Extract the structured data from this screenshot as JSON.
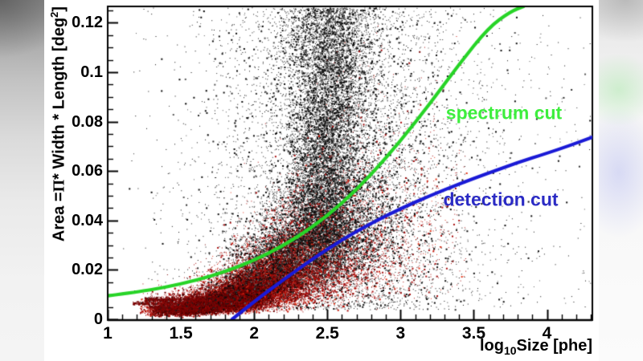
{
  "chart_data": {
    "type": "scatter",
    "title": "",
    "xlabel": {
      "prefix": "log",
      "sub": "10",
      "rest": "Size [phe]"
    },
    "ylabel": {
      "t1": "Area =",
      "pi": "Π",
      "t2": "* Width * Length [deg",
      "sup": "2",
      "t3": "]"
    },
    "x_axis": {
      "min": 1.0,
      "max": 4.31,
      "major_ticks": [
        1,
        1.5,
        2,
        2.5,
        3,
        3.5,
        4
      ],
      "labels": [
        "1",
        "1.5",
        "2",
        "2.5",
        "3",
        "3.5",
        "4"
      ],
      "minor_step": 0.1
    },
    "y_axis": {
      "min": 0.0,
      "max": 0.1266,
      "major_ticks": [
        0,
        0.02,
        0.04,
        0.06,
        0.08,
        0.1,
        0.12
      ],
      "labels": [
        "0",
        "0.02",
        "0.04",
        "0.06",
        "0.08",
        "0.1",
        "0.12"
      ],
      "minor_step": 0.005
    },
    "grid": false,
    "curves": [
      {
        "name": "spectrum cut",
        "color": "#27d427",
        "label_color": "#3dee3d",
        "points": [
          [
            1.0,
            0.0095
          ],
          [
            1.2,
            0.011
          ],
          [
            1.4,
            0.013
          ],
          [
            1.6,
            0.0157
          ],
          [
            1.8,
            0.0192
          ],
          [
            2.0,
            0.0238
          ],
          [
            2.2,
            0.0298
          ],
          [
            2.4,
            0.0373
          ],
          [
            2.6,
            0.0468
          ],
          [
            2.8,
            0.0585
          ],
          [
            3.0,
            0.0722
          ],
          [
            3.2,
            0.0872
          ],
          [
            3.4,
            0.1032
          ],
          [
            3.6,
            0.118
          ],
          [
            3.75,
            0.1245
          ],
          [
            3.84,
            0.1266
          ]
        ]
      },
      {
        "name": "detection cut",
        "color": "#1a1ad6",
        "label_color": "#2b2bc4",
        "points": [
          [
            1.85,
            0.0
          ],
          [
            2.0,
            0.0072
          ],
          [
            2.2,
            0.016
          ],
          [
            2.4,
            0.0245
          ],
          [
            2.6,
            0.0322
          ],
          [
            2.8,
            0.0389
          ],
          [
            3.0,
            0.0448
          ],
          [
            3.2,
            0.05
          ],
          [
            3.4,
            0.0548
          ],
          [
            3.6,
            0.0592
          ],
          [
            3.8,
            0.0634
          ],
          [
            4.0,
            0.0672
          ],
          [
            4.15,
            0.0702
          ],
          [
            4.31,
            0.0737
          ]
        ]
      }
    ],
    "scatter_series": [
      {
        "name": "background-events-black",
        "palette": [
          "#0c0c0c",
          "#2e2e2e",
          "#575757"
        ],
        "clusters": [
          {
            "kind": "halo",
            "n": 6500,
            "cx": 2.55,
            "sx": 0.5,
            "ymin": 0.004,
            "ymax": 0.138,
            "pow": 1.15
          },
          {
            "kind": "column",
            "n": 9500,
            "cx": 2.46,
            "tilt": 0.09,
            "sx": 0.105,
            "sx_top": 0.165,
            "y0": 0.03,
            "y1": 0.15
          },
          {
            "kind": "ridge",
            "n": 8000,
            "cx": 2.32,
            "sx": 0.3,
            "clip": [
              1.55,
              3.3
            ],
            "a": 0.0135,
            "b": 0.03,
            "x_ref": 1.85,
            "spread": 0.38
          },
          {
            "kind": "uniform",
            "n": 260,
            "x": [
              3.05,
              4.3
            ],
            "y": [
              0.004,
              0.126
            ]
          }
        ]
      },
      {
        "name": "gamma-events-red",
        "palette": [
          "#a80f0f",
          "#c41808",
          "#7a0404",
          "#e23418"
        ],
        "clusters": [
          {
            "kind": "power",
            "n": 11000,
            "cx": 1.95,
            "sx": 0.33,
            "clip": [
              1.22,
              2.95
            ],
            "y_base": 0.004,
            "y_coef": 0.016,
            "y_x0": 1.3,
            "y_pow": 1.9,
            "spread": 0.48
          },
          {
            "kind": "power",
            "n": 7000,
            "cx": 1.82,
            "sx": 0.26,
            "clip": [
              1.3,
              2.5
            ],
            "y_base": 0.0035,
            "y_coef": 0.013,
            "y_x0": 1.3,
            "y_pow": 1.7,
            "spread": 0.4,
            "palette": [
              "#6f0202",
              "#8b0404",
              "#4f0000",
              "#230404"
            ]
          },
          {
            "kind": "power",
            "n": 2200,
            "cx": 2.6,
            "sx": 0.4,
            "clip": [
              1.85,
              3.45
            ],
            "y_base": 0.006,
            "y_coef": 0.018,
            "y_x0": 1.7,
            "y_pow": 1.5,
            "spread": 0.55
          },
          {
            "kind": "streak",
            "n": 900,
            "x": [
              1.25,
              1.97
            ],
            "y": 0.0082,
            "jitter": 0.0005,
            "palette": [
              "#7c0505",
              "#9b0b0b",
              "#500000",
              "#1d1d1d"
            ]
          },
          {
            "kind": "streak",
            "n": 700,
            "x": [
              1.17,
              1.88
            ],
            "y": 0.0066,
            "jitter": 0.0004,
            "palette": [
              "#7c0505",
              "#9b0b0b",
              "#500000",
              "#1d1d1d"
            ]
          },
          {
            "kind": "streak",
            "n": 550,
            "x": [
              1.28,
              1.78
            ],
            "y": 0.0051,
            "jitter": 0.00035,
            "palette": [
              "#7c0505",
              "#9b0b0b",
              "#500000",
              "#1d1d1d"
            ]
          },
          {
            "kind": "streak",
            "n": 350,
            "x": [
              1.33,
              1.63
            ],
            "y": 0.004,
            "jitter": 0.0003,
            "palette": [
              "#7c0505",
              "#9b0b0b",
              "#500000",
              "#1d1d1d"
            ]
          }
        ]
      },
      {
        "name": "background-events-black-overlay",
        "palette": [
          "#0c0c0c",
          "#2e2e2e",
          "#575757"
        ],
        "clusters": [
          {
            "kind": "ridge",
            "n": 2600,
            "cx": 2.32,
            "sx": 0.3,
            "clip": [
              1.55,
              3.3
            ],
            "a": 0.0135,
            "b": 0.03,
            "x_ref": 1.85,
            "spread": 0.38
          }
        ]
      }
    ]
  }
}
